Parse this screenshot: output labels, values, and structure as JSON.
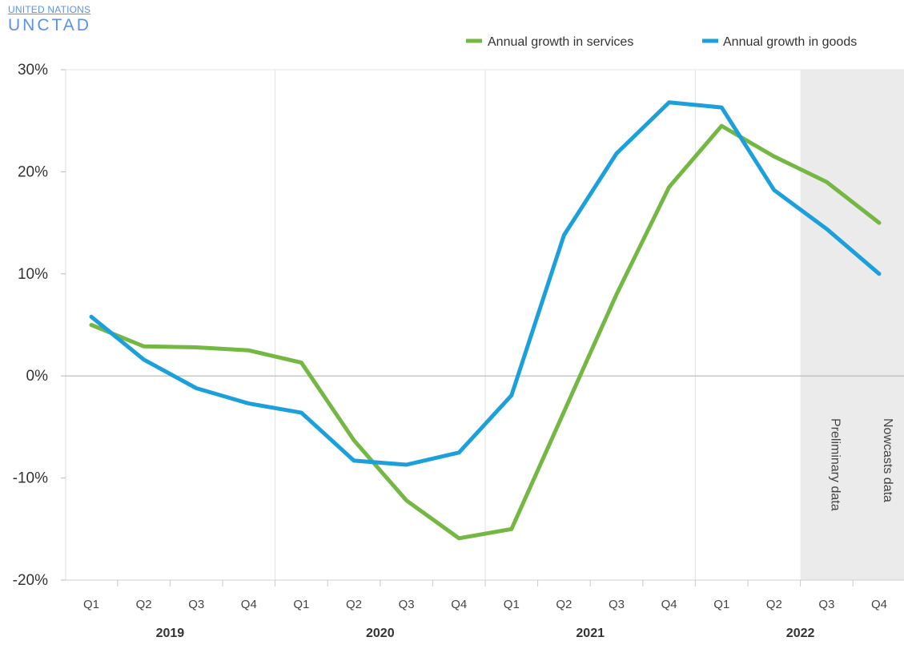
{
  "logo": {
    "top": "UNITED NATIONS",
    "main": "UNCTAD"
  },
  "chart_data": {
    "type": "line",
    "categories": [
      "Q1",
      "Q2",
      "Q3",
      "Q4",
      "Q1",
      "Q2",
      "Q3",
      "Q4",
      "Q1",
      "Q2",
      "Q3",
      "Q4",
      "Q1",
      "Q2",
      "Q3",
      "Q4"
    ],
    "years": [
      {
        "label": "2019",
        "start": 0,
        "end": 3
      },
      {
        "label": "2020",
        "start": 4,
        "end": 7
      },
      {
        "label": "2021",
        "start": 8,
        "end": 11
      },
      {
        "label": "2022",
        "start": 12,
        "end": 15
      }
    ],
    "ylim": [
      -20,
      30
    ],
    "yticks": [
      -20,
      -10,
      0,
      10,
      20,
      30
    ],
    "ytick_labels": [
      "-20%",
      "-10%",
      "0%",
      "10%",
      "20%",
      "30%"
    ],
    "grid": true,
    "legend_position": "top-right",
    "series": [
      {
        "name": "Annual growth in services",
        "color": "#74b843",
        "values": [
          5.0,
          2.9,
          2.8,
          2.5,
          1.3,
          -6.3,
          -12.2,
          -15.9,
          -15.0,
          -3.5,
          8.0,
          18.5,
          24.5,
          21.5,
          19.0,
          15.0
        ]
      },
      {
        "name": "Annual growth in goods",
        "color": "#1ba0dc",
        "values": [
          5.8,
          1.6,
          -1.2,
          -2.7,
          -3.6,
          -8.3,
          -8.7,
          -7.5,
          -1.9,
          13.8,
          21.8,
          26.8,
          26.3,
          18.2,
          14.4,
          10.0
        ]
      }
    ],
    "shaded_region": {
      "start": 14,
      "end": 15,
      "color": "#ebebeb"
    },
    "annotations": [
      {
        "text": "Preliminary data",
        "index": 14
      },
      {
        "text": "Nowcasts data",
        "index": 15
      }
    ]
  }
}
